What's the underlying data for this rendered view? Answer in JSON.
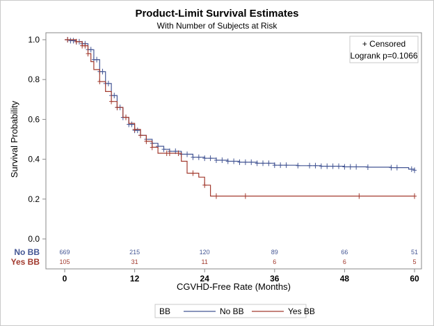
{
  "chart_data": {
    "type": "line",
    "title": "Product-Limit Survival Estimates",
    "subtitle": "With Number of Subjects at Risk",
    "xlabel": "CGVHD-Free Rate (Months)",
    "ylabel": "Survival Probability",
    "xlim": [
      0,
      60
    ],
    "ylim": [
      0,
      1.0
    ],
    "x_ticks": [
      0,
      12,
      24,
      36,
      48,
      60
    ],
    "y_ticks": [
      "0.0",
      "0.2",
      "0.4",
      "0.6",
      "0.8",
      "1.0"
    ],
    "inset": {
      "censored_label": "+ Censored",
      "logrank": "Logrank p=0.1066"
    },
    "legend": {
      "title": "BB",
      "placement": "bottom",
      "entries": [
        "No BB",
        "Yes BB"
      ]
    },
    "colors": {
      "No BB": "#445694",
      "Yes BB": "#a23a2e"
    },
    "series": [
      {
        "name": "No BB",
        "x": [
          0,
          1,
          2,
          3,
          4,
          5,
          6,
          7,
          8,
          9,
          10,
          11,
          12,
          13,
          14,
          15,
          16,
          17,
          18,
          20,
          22,
          24,
          26,
          28,
          30,
          33,
          36,
          40,
          44,
          48,
          52,
          56,
          59,
          60
        ],
        "y": [
          1.0,
          0.995,
          0.99,
          0.98,
          0.95,
          0.9,
          0.84,
          0.78,
          0.72,
          0.66,
          0.61,
          0.575,
          0.545,
          0.52,
          0.5,
          0.48,
          0.465,
          0.45,
          0.44,
          0.425,
          0.41,
          0.405,
          0.395,
          0.39,
          0.385,
          0.38,
          0.37,
          0.368,
          0.365,
          0.362,
          0.36,
          0.358,
          0.35,
          0.345
        ],
        "censored_x": [
          0.5,
          1,
          1.5,
          2,
          2.5,
          3,
          3.5,
          4,
          4.5,
          5,
          5.5,
          6,
          6.5,
          7,
          7.5,
          8,
          8.5,
          9,
          9.5,
          10,
          10.5,
          11,
          11.5,
          12,
          12.5,
          13,
          14,
          15,
          16,
          17,
          18,
          19,
          20,
          21,
          22,
          23,
          24,
          25,
          26,
          27,
          28,
          29,
          30,
          31,
          32,
          33,
          34,
          35,
          36,
          37,
          38,
          40,
          42,
          43,
          44,
          45,
          46,
          47,
          48,
          49,
          50,
          52,
          56,
          57,
          59.5,
          60
        ]
      },
      {
        "name": "Yes BB",
        "x": [
          0,
          2,
          3,
          4,
          4.5,
          5,
          6,
          7,
          8,
          9,
          10,
          11,
          12,
          13,
          14,
          15,
          16,
          19,
          20,
          21,
          23,
          24,
          25,
          60
        ],
        "y": [
          1.0,
          0.99,
          0.97,
          0.93,
          0.89,
          0.85,
          0.79,
          0.74,
          0.69,
          0.66,
          0.61,
          0.58,
          0.55,
          0.52,
          0.49,
          0.46,
          0.43,
          0.43,
          0.39,
          0.33,
          0.31,
          0.27,
          0.215,
          0.215
        ],
        "censored_x": [
          0.5,
          2,
          3,
          3.5,
          4,
          6,
          8,
          9,
          10.5,
          12,
          13,
          14,
          15,
          17.5,
          18,
          19.5,
          22,
          24,
          26,
          31,
          50.5,
          60
        ]
      }
    ],
    "risk_table": {
      "times": [
        0,
        12,
        24,
        36,
        48,
        60
      ],
      "rows": [
        {
          "label": "No BB",
          "values": [
            "669",
            "215",
            "120",
            "89",
            "66",
            "51"
          ]
        },
        {
          "label": "Yes BB",
          "values": [
            "105",
            "31",
            "11",
            "6",
            "6",
            "5"
          ]
        }
      ]
    }
  }
}
